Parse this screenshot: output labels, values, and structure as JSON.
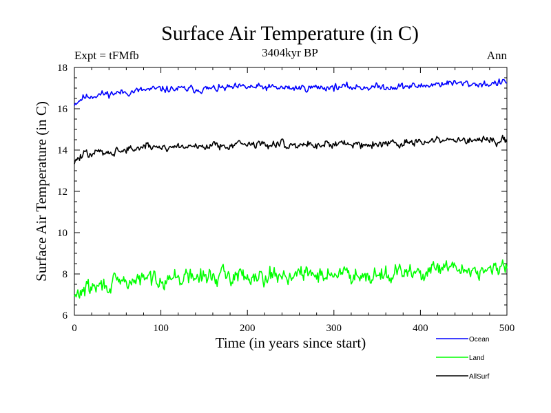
{
  "chart_data": {
    "type": "line",
    "title": "Surface Air Temperature (in C)",
    "subtitle": "3404kyr BP",
    "left_note": "Expt = tFMfb",
    "right_note": "Ann",
    "xlabel": "Time (in years since start)",
    "ylabel": "Surface Air Temperature (in C)",
    "xlim": [
      0,
      500
    ],
    "ylim": [
      6,
      18
    ],
    "x_ticks": [
      0,
      100,
      200,
      300,
      400,
      500
    ],
    "y_ticks": [
      6,
      8,
      10,
      12,
      14,
      16,
      18
    ],
    "x_tick_labels": [
      "0",
      "100",
      "200",
      "300",
      "400",
      "500"
    ],
    "y_tick_labels": [
      "6",
      "8",
      "10",
      "12",
      "14",
      "16",
      "18"
    ],
    "grid": false,
    "legend_position": "bottom-right",
    "series": [
      {
        "name": "Ocean",
        "color": "#0000ff",
        "anchors": [
          [
            0,
            16.25
          ],
          [
            10,
            16.55
          ],
          [
            30,
            16.7
          ],
          [
            60,
            16.8
          ],
          [
            80,
            16.9
          ],
          [
            100,
            16.95
          ],
          [
            150,
            16.95
          ],
          [
            200,
            17.05
          ],
          [
            250,
            17.0
          ],
          [
            300,
            17.05
          ],
          [
            350,
            17.05
          ],
          [
            400,
            17.1
          ],
          [
            430,
            17.25
          ],
          [
            460,
            17.2
          ],
          [
            480,
            17.2
          ],
          [
            500,
            17.3
          ]
        ],
        "amplitude": 0.11,
        "seed": 11
      },
      {
        "name": "Land",
        "color": "#00ff00",
        "anchors": [
          [
            0,
            6.8
          ],
          [
            10,
            7.25
          ],
          [
            30,
            7.4
          ],
          [
            60,
            7.6
          ],
          [
            80,
            7.75
          ],
          [
            100,
            7.8
          ],
          [
            150,
            7.85
          ],
          [
            200,
            7.95
          ],
          [
            250,
            7.95
          ],
          [
            300,
            8.0
          ],
          [
            350,
            8.0
          ],
          [
            400,
            8.05
          ],
          [
            430,
            8.25
          ],
          [
            460,
            8.2
          ],
          [
            480,
            8.15
          ],
          [
            500,
            8.3
          ]
        ],
        "amplitude": 0.26,
        "seed": 29
      },
      {
        "name": "AllSurf",
        "color": "#000000",
        "anchors": [
          [
            0,
            13.45
          ],
          [
            10,
            13.75
          ],
          [
            30,
            13.9
          ],
          [
            60,
            14.0
          ],
          [
            80,
            14.15
          ],
          [
            100,
            14.15
          ],
          [
            150,
            14.2
          ],
          [
            200,
            14.3
          ],
          [
            250,
            14.25
          ],
          [
            300,
            14.3
          ],
          [
            350,
            14.3
          ],
          [
            400,
            14.35
          ],
          [
            430,
            14.5
          ],
          [
            460,
            14.45
          ],
          [
            480,
            14.4
          ],
          [
            500,
            14.55
          ]
        ],
        "amplitude": 0.13,
        "seed": 47
      }
    ]
  }
}
